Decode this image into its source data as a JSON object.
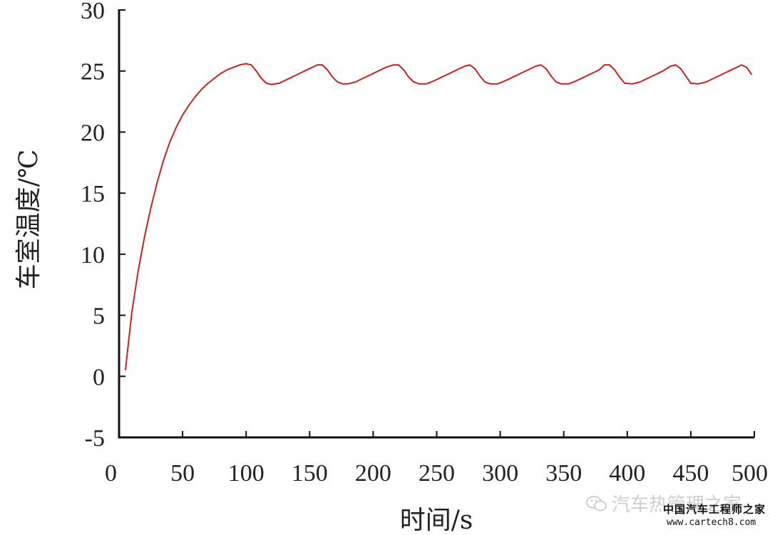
{
  "chart_data": {
    "type": "line",
    "title": "",
    "xlabel": "时间/s",
    "ylabel": "车室温度/℃",
    "xlim": [
      0,
      500
    ],
    "ylim": [
      -5,
      30
    ],
    "xticks": [
      0,
      50,
      100,
      150,
      200,
      250,
      300,
      350,
      400,
      450,
      500
    ],
    "yticks": [
      -5,
      0,
      5,
      10,
      15,
      20,
      25,
      30
    ],
    "grid": false,
    "line_color": "#cc2020",
    "series": [
      {
        "name": "",
        "x": [
          5,
          10,
          15,
          20,
          25,
          30,
          35,
          40,
          45,
          50,
          55,
          60,
          65,
          70,
          75,
          80,
          85,
          90,
          95,
          100,
          104,
          108,
          112,
          116,
          120,
          126,
          132,
          138,
          144,
          150,
          156,
          160,
          164,
          168,
          172,
          176,
          180,
          186,
          192,
          198,
          204,
          210,
          216,
          220,
          224,
          228,
          232,
          236,
          242,
          248,
          254,
          260,
          266,
          272,
          276,
          280,
          284,
          288,
          292,
          298,
          304,
          310,
          316,
          322,
          328,
          332,
          336,
          340,
          344,
          348,
          354,
          360,
          366,
          372,
          378,
          382,
          386,
          390,
          394,
          398,
          404,
          410,
          416,
          422,
          428,
          434,
          438,
          442,
          446,
          450,
          456,
          462,
          468,
          474,
          480,
          486,
          490,
          494,
          498
        ],
        "y": [
          0.5,
          5.2,
          8.6,
          11.4,
          13.8,
          15.9,
          17.7,
          19.2,
          20.4,
          21.4,
          22.2,
          22.9,
          23.5,
          24.0,
          24.4,
          24.8,
          25.1,
          25.3,
          25.5,
          25.6,
          25.5,
          25.0,
          24.4,
          24.0,
          23.9,
          24.0,
          24.3,
          24.6,
          24.9,
          25.2,
          25.5,
          25.5,
          25.1,
          24.5,
          24.1,
          23.95,
          23.95,
          24.1,
          24.4,
          24.7,
          25.0,
          25.3,
          25.5,
          25.5,
          25.1,
          24.5,
          24.1,
          23.95,
          23.95,
          24.2,
          24.5,
          24.8,
          25.1,
          25.4,
          25.5,
          25.2,
          24.6,
          24.1,
          23.95,
          23.95,
          24.2,
          24.5,
          24.8,
          25.1,
          25.4,
          25.5,
          25.2,
          24.6,
          24.1,
          23.95,
          23.95,
          24.2,
          24.5,
          24.8,
          25.1,
          25.5,
          25.5,
          25.1,
          24.5,
          24.0,
          23.95,
          24.1,
          24.4,
          24.7,
          25.0,
          25.4,
          25.5,
          25.2,
          24.6,
          24.0,
          23.95,
          24.1,
          24.4,
          24.7,
          25.0,
          25.3,
          25.5,
          25.3,
          24.7
        ]
      }
    ]
  },
  "watermark": {
    "main_text": "汽车热管理之家",
    "icon": "wechat-icon",
    "sub_text": "中国汽车工程师之家",
    "url": "www.cartech8.com"
  }
}
